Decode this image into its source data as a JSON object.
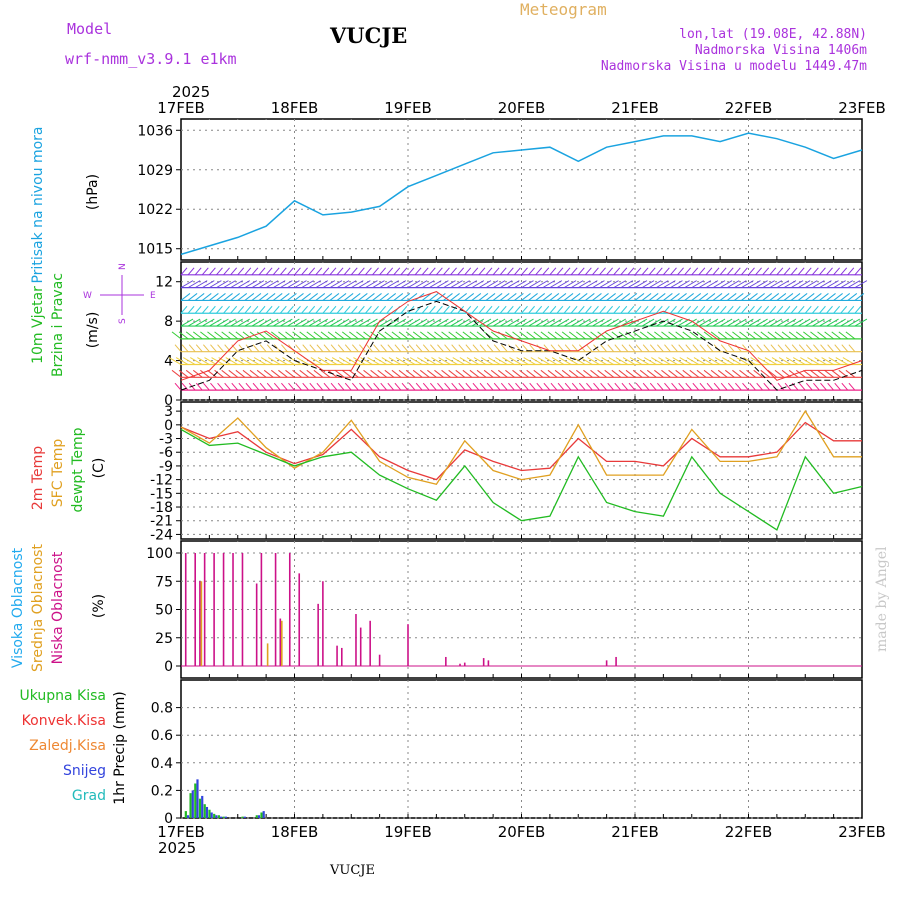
{
  "header": {
    "model_label": "Model",
    "model_name": "wrf-nmm_v3.9.1 e1km",
    "station": "VUCJE",
    "meteogram_label": "Meteogram",
    "lonlat": "lon,lat (19.08E, 42.88N)",
    "elevation": "Nadmorska Visina 1406m",
    "model_elevation": "Nadmorska Visina u modelu 1449.47m",
    "year_top": "2025",
    "year_bottom": "2025",
    "footer_station": "VUCJE",
    "watermark": "made by Angel"
  },
  "colors": {
    "pressure": "#1aa3e0",
    "temp2m": "#e83a3a",
    "sfc": "#e0a020",
    "dewpt": "#22bb22",
    "cloud_high": "#22aaee",
    "cloud_mid": "#e0a020",
    "cloud_low": "#cc1188",
    "precip_total": "#22bb22",
    "precip_conv": "#ee3333",
    "precip_snow": "#3344dd",
    "precip_hail": "#22bbbb",
    "precip_frz": "#ee8833",
    "wind_dir_label": "#aa33dd",
    "grid": "#888888"
  },
  "dates": [
    "17FEB",
    "18FEB",
    "19FEB",
    "20FEB",
    "21FEB",
    "22FEB",
    "23FEB"
  ],
  "panels": {
    "pressure": {
      "ylabel_1": "Pritisak na nivou mora",
      "ylabel_2": "(hPa)",
      "ticks": [
        "1036",
        "1029",
        "1022",
        "1015"
      ]
    },
    "wind": {
      "ylabel_1": "10m Vjetar",
      "ylabel_2": "Brzina i Pravac",
      "ylabel_3": "(m/s)",
      "compass_n": "N",
      "compass_s": "S",
      "compass_w": "W",
      "compass_e": "E",
      "ticks": [
        "12",
        "8",
        "4",
        "0"
      ]
    },
    "temp": {
      "ylabel_1": "2m Temp",
      "ylabel_2": "SFC Temp",
      "ylabel_3": "dewpt Temp",
      "ylabel_4": "(C)",
      "ticks": [
        "3",
        "0",
        "-3",
        "-6",
        "-9",
        "-12",
        "-15",
        "-18",
        "-21",
        "-24"
      ]
    },
    "cloud": {
      "ylabel_1": "Visoka Oblacnost",
      "ylabel_2": "Srednja Oblacnost",
      "ylabel_3": "Niska Oblacnost",
      "ylabel_4": "(%)",
      "ticks": [
        "100",
        "75",
        "50",
        "25",
        "0"
      ]
    },
    "precip": {
      "legend_total": "Ukupna Kisa",
      "legend_conv": "Konvek.Kisa",
      "legend_frz": "Zaledj.Kisa",
      "legend_snow": "Snijeg",
      "legend_hail": "Grad",
      "ylabel": "1hr Precip (mm)",
      "ticks": [
        "0.8",
        "0.6",
        "0.4",
        "0.2",
        "0"
      ]
    }
  },
  "chart_data": [
    {
      "type": "line",
      "title": "",
      "ylabel": "Pritisak na nivou mora (hPa)",
      "x": [
        0,
        6,
        12,
        18,
        24,
        30,
        36,
        42,
        48,
        54,
        60,
        66,
        72,
        78,
        84,
        90,
        96,
        102,
        108,
        114,
        120,
        126,
        132,
        138,
        144
      ],
      "series": [
        {
          "name": "",
          "values": [
            1014,
            1015.5,
            1017,
            1019,
            1023.5,
            1021,
            1021.5,
            1022.5,
            1026,
            1028,
            1030,
            1032,
            1032.5,
            1033,
            1030.5,
            1033,
            1034,
            1035,
            1035,
            1034,
            1035.5,
            1034.5,
            1033,
            1031,
            1032.5
          ]
        }
      ],
      "ylim": [
        1013,
        1038
      ],
      "grid": true
    },
    {
      "type": "line",
      "title": "",
      "ylabel": "(C)",
      "x": [
        0,
        6,
        12,
        18,
        24,
        30,
        36,
        42,
        48,
        54,
        60,
        66,
        72,
        78,
        84,
        90,
        96,
        102,
        108,
        114,
        120,
        126,
        132,
        138,
        144
      ],
      "series": [
        {
          "name": "2m Temp",
          "values": [
            -0.5,
            -3,
            -1.5,
            -6,
            -8.5,
            -6.5,
            -1,
            -7,
            -10,
            -12,
            -5.5,
            -8,
            -10,
            -9.5,
            -3,
            -8,
            -8,
            -9,
            -3,
            -7,
            -7,
            -6,
            0.5,
            -3.5,
            -3.5
          ]
        },
        {
          "name": "SFC Temp",
          "values": [
            -0.5,
            -4,
            1.5,
            -5,
            -9.5,
            -6,
            1,
            -8,
            -11.5,
            -13,
            -3.5,
            -10,
            -12,
            -11,
            0,
            -11,
            -11,
            -11,
            -1,
            -8,
            -8,
            -7,
            3,
            -7,
            -7
          ]
        },
        {
          "name": "dewpt Temp",
          "values": [
            -1,
            -4.5,
            -4,
            -6.5,
            -9,
            -7,
            -6,
            -11,
            -14,
            -16.5,
            -9,
            -17,
            -21,
            -20,
            -7,
            -17,
            -19,
            -20,
            -7,
            -15,
            -19,
            -23,
            -7,
            -15,
            -13.5
          ]
        }
      ],
      "ylim": [
        -25,
        5
      ],
      "grid": true
    },
    {
      "type": "bar",
      "title": "",
      "ylabel": "(%)",
      "x": [
        1,
        2,
        3,
        4,
        5,
        6,
        7,
        8,
        9,
        10,
        11,
        12,
        13,
        14,
        15,
        16,
        17,
        18,
        19,
        20,
        21,
        22,
        23,
        24,
        25,
        26,
        27,
        28,
        29,
        30,
        31,
        32,
        33,
        34,
        35,
        36,
        37,
        38,
        39,
        40,
        42,
        48,
        56,
        59,
        60,
        64,
        65,
        90,
        92
      ],
      "series": [
        {
          "name": "Niska Oblacnost",
          "values": [
            100,
            0,
            100,
            75,
            100,
            0,
            100,
            0,
            100,
            0,
            100,
            0,
            100,
            0,
            0,
            73,
            100,
            0,
            0,
            100,
            42,
            0,
            100,
            0,
            82,
            0,
            0,
            0,
            55,
            75,
            0,
            0,
            18,
            16,
            0,
            0,
            46,
            34,
            0,
            40,
            10,
            37,
            8,
            2,
            3,
            7,
            5,
            5,
            8
          ]
        },
        {
          "name": "Srednja Oblacnost",
          "values": [
            0,
            0,
            0,
            75,
            0,
            0,
            0,
            0,
            0,
            0,
            0,
            0,
            0,
            0,
            0,
            0,
            0,
            20,
            0,
            0,
            40,
            0,
            0,
            0,
            0,
            0,
            0,
            0,
            0,
            0,
            0,
            0,
            0,
            0,
            0,
            0,
            0,
            0,
            0,
            0,
            0,
            0,
            0,
            0,
            0,
            0,
            0,
            0,
            0
          ]
        },
        {
          "name": "Visoka Oblacnost",
          "values": [
            0,
            0,
            0,
            0,
            0,
            0,
            0,
            0,
            0,
            0,
            0,
            0,
            0,
            0,
            0,
            0,
            0,
            0,
            0,
            0,
            0,
            0,
            0,
            0,
            0,
            0,
            0,
            0,
            0,
            0,
            0,
            0,
            0,
            0,
            0,
            0,
            0,
            0,
            0,
            0,
            0,
            0,
            0,
            0,
            0,
            0,
            0,
            0,
            0
          ]
        }
      ],
      "ylim": [
        0,
        100
      ],
      "grid": true
    },
    {
      "type": "bar",
      "title": "",
      "ylabel": "1hr Precip (mm)",
      "x": [
        1,
        2,
        3,
        4,
        5,
        6,
        7,
        8,
        9,
        13,
        16,
        17
      ],
      "series": [
        {
          "name": "Ukupna Kisa",
          "values": [
            0.05,
            0.18,
            0.25,
            0.14,
            0.1,
            0.06,
            0.03,
            0.02,
            0.01,
            0.01,
            0.02,
            0.04
          ]
        },
        {
          "name": "Snijeg",
          "values": [
            0.02,
            0.2,
            0.28,
            0.16,
            0.08,
            0.04,
            0.02,
            0.01,
            0.01,
            0.01,
            0.02,
            0.05
          ]
        }
      ],
      "ylim": [
        0,
        1.0
      ],
      "grid": true
    }
  ]
}
